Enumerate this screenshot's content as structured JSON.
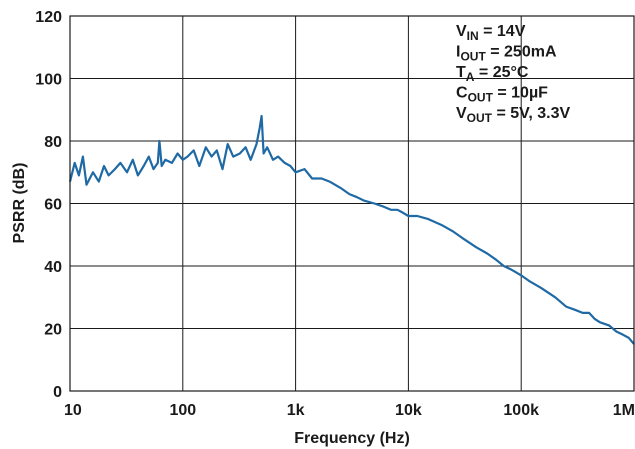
{
  "chart_data": {
    "type": "line",
    "title": "",
    "xlabel": "Frequency (Hz)",
    "ylabel": "PSRR (dB)",
    "x_scale": "log",
    "xlim": [
      10,
      1000000
    ],
    "ylim": [
      0,
      120
    ],
    "grid": true,
    "x_ticks": [
      {
        "value": 10,
        "label": "10"
      },
      {
        "value": 100,
        "label": "100"
      },
      {
        "value": 1000,
        "label": "1k"
      },
      {
        "value": 10000,
        "label": "10k"
      },
      {
        "value": 100000,
        "label": "100k"
      },
      {
        "value": 1000000,
        "label": "1M"
      }
    ],
    "y_ticks": [
      {
        "value": 0,
        "label": "0"
      },
      {
        "value": 20,
        "label": "20"
      },
      {
        "value": 40,
        "label": "40"
      },
      {
        "value": 60,
        "label": "60"
      },
      {
        "value": 80,
        "label": "80"
      },
      {
        "value": 100,
        "label": "100"
      },
      {
        "value": 120,
        "label": "120"
      }
    ],
    "line_color": "#1f6aa5",
    "conditions": [
      {
        "main": "V",
        "sub": "IN",
        "rest": " = 14V"
      },
      {
        "main": "I",
        "sub": "OUT",
        "rest": " = 250mA"
      },
      {
        "main": "T",
        "sub": "A",
        "rest": " = 25°C"
      },
      {
        "main": "C",
        "sub": "OUT",
        "rest": " = 10µF"
      },
      {
        "main": "V",
        "sub": "OUT",
        "rest": " = 5V, 3.3V"
      }
    ],
    "series": [
      {
        "x": [
          10,
          11,
          12,
          13,
          14,
          16,
          18,
          20,
          22,
          25,
          28,
          32,
          36,
          40,
          45,
          50,
          55,
          60,
          62,
          65,
          70,
          80,
          90,
          100,
          110,
          125,
          140,
          160,
          180,
          200,
          225,
          250,
          280,
          320,
          360,
          400,
          450,
          480,
          500,
          520,
          560,
          630,
          700,
          800,
          900,
          1000,
          1200,
          1400,
          1700,
          2000,
          2500,
          3000,
          3500,
          4000,
          5000,
          6000,
          7000,
          8000,
          9000,
          10000,
          12000,
          15000,
          20000,
          25000,
          30000,
          40000,
          50000,
          60000,
          70000,
          80000,
          90000,
          100000,
          120000,
          150000,
          200000,
          250000,
          300000,
          350000,
          400000,
          450000,
          500000,
          600000,
          700000,
          800000,
          900000,
          1000000
        ],
        "values": [
          67,
          73,
          69,
          75,
          66,
          70,
          67,
          72,
          69,
          71,
          73,
          70,
          74,
          69,
          72,
          75,
          71,
          73,
          80,
          72,
          74,
          73,
          76,
          74,
          75,
          77,
          72,
          78,
          75,
          77,
          71,
          79,
          75,
          76,
          78,
          74,
          79,
          84,
          88,
          76,
          78,
          74,
          75,
          73,
          72,
          70,
          71,
          68,
          68,
          67,
          65,
          63,
          62,
          61,
          60,
          59,
          58,
          58,
          57,
          56,
          56,
          55,
          53,
          51,
          49,
          46,
          44,
          42,
          40,
          39,
          38,
          37,
          35,
          33,
          30,
          27,
          26,
          25,
          25,
          23,
          22,
          21,
          19,
          18,
          17,
          15
        ]
      }
    ]
  }
}
